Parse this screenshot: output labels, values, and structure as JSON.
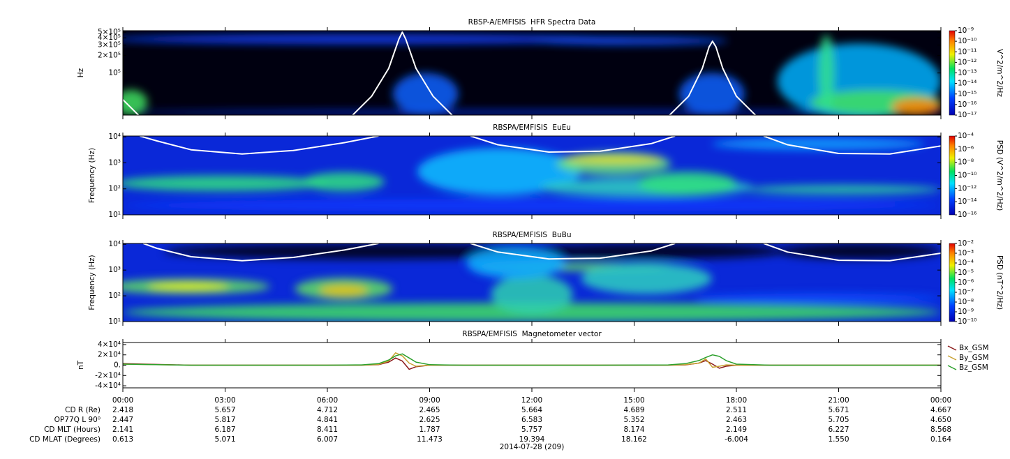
{
  "chart_data": [
    {
      "type": "spectrogram",
      "title": "RBSP-A/EMFISIS  HFR Spectra Data",
      "ylabel": "Hz",
      "ylog": true,
      "ylim": [
        19000,
        530000
      ],
      "yticks": [
        {
          "value": 100000,
          "label": "10⁵"
        },
        {
          "value": 200000,
          "label": "2×10⁵"
        },
        {
          "value": 300000,
          "label": "3×10⁵"
        },
        {
          "value": 400000,
          "label": "4×10⁵"
        },
        {
          "value": 500000,
          "label": "5×10⁵"
        }
      ],
      "xlim": [
        0,
        24
      ],
      "xticks": [
        0,
        3,
        6,
        9,
        12,
        15,
        18,
        21,
        24
      ],
      "colorbar": {
        "label": "V^2/m^2/Hz",
        "log": true,
        "lim": [
          1e-17,
          1e-09
        ],
        "ticks": [
          {
            "value": 1e-09,
            "label": "10⁻⁹"
          },
          {
            "value": 1e-10,
            "label": "10⁻¹⁰"
          },
          {
            "value": 1e-11,
            "label": "10⁻¹¹"
          },
          {
            "value": 1e-12,
            "label": "10⁻¹²"
          },
          {
            "value": 1e-13,
            "label": "10⁻¹³"
          },
          {
            "value": 1e-14,
            "label": "10⁻¹⁴"
          },
          {
            "value": 1e-15,
            "label": "10⁻¹⁵"
          },
          {
            "value": 1e-16,
            "label": "10⁻¹⁶"
          },
          {
            "value": 1e-17,
            "label": "10⁻¹⁷"
          }
        ]
      },
      "lines": [
        {
          "color": "#ffffff",
          "x": [
            0,
            0.5,
            6.7,
            7.3,
            7.8,
            8.1,
            8.2,
            8.3,
            8.6,
            9.1,
            9.7,
            16.0,
            16.6,
            17.0,
            17.2,
            17.3,
            17.4,
            17.6,
            18.0,
            18.6
          ],
          "values": [
            35000,
            18000,
            18000,
            40000,
            120000,
            380000,
            500000,
            380000,
            120000,
            40000,
            18000,
            18000,
            40000,
            120000,
            280000,
            350000,
            280000,
            120000,
            40000,
            18000
          ]
        }
      ]
    },
    {
      "type": "spectrogram",
      "title": "RBSPA/EMFISIS  EuEu",
      "ylabel": "Frequency (Hz)",
      "ylog": true,
      "ylim": [
        10,
        10800
      ],
      "yticks": [
        {
          "value": 10,
          "label": "10¹"
        },
        {
          "value": 100,
          "label": "10²"
        },
        {
          "value": 1000,
          "label": "10³"
        },
        {
          "value": 10000,
          "label": "10⁴"
        }
      ],
      "xlim": [
        0,
        24
      ],
      "xticks": [
        0,
        3,
        6,
        9,
        12,
        15,
        18,
        21,
        24
      ],
      "colorbar": {
        "label": "PSD (V^2/m^2/Hz)",
        "log": true,
        "lim": [
          1e-16,
          0.0001
        ],
        "ticks": [
          {
            "value": 0.0001,
            "label": "10⁻⁴"
          },
          {
            "value": 1e-06,
            "label": "10⁻⁶"
          },
          {
            "value": 1e-08,
            "label": "10⁻⁸"
          },
          {
            "value": 1e-10,
            "label": "10⁻¹⁰"
          },
          {
            "value": 1e-12,
            "label": "10⁻¹²"
          },
          {
            "value": 1e-14,
            "label": "10⁻¹⁴"
          },
          {
            "value": 1e-16,
            "label": "10⁻¹⁶"
          }
        ]
      },
      "lines": [
        {
          "color": "#ffffff",
          "x": [
            0.5,
            1,
            2,
            3.5,
            5,
            6.5,
            7.5,
            8.5,
            10.2,
            11,
            12.5,
            14,
            15.5,
            16.2,
            17.5,
            18.8,
            19.5,
            21,
            22.5,
            24
          ],
          "values": [
            10800,
            7000,
            3200,
            2200,
            3000,
            6000,
            10800,
            null,
            10800,
            5000,
            2600,
            2800,
            5500,
            10800,
            null,
            10800,
            5000,
            2300,
            2200,
            4500
          ]
        }
      ]
    },
    {
      "type": "spectrogram",
      "title": "RBSPA/EMFISIS  BuBu",
      "ylabel": "Frequency (Hz)",
      "ylog": true,
      "ylim": [
        10,
        10800
      ],
      "yticks": [
        {
          "value": 10,
          "label": "10¹"
        },
        {
          "value": 100,
          "label": "10²"
        },
        {
          "value": 1000,
          "label": "10³"
        },
        {
          "value": 10000,
          "label": "10⁴"
        }
      ],
      "xlim": [
        0,
        24
      ],
      "xticks": [
        0,
        3,
        6,
        9,
        12,
        15,
        18,
        21,
        24
      ],
      "colorbar": {
        "label": "PSD (nT^2/Hz)",
        "log": true,
        "lim": [
          1e-10,
          0.01
        ],
        "ticks": [
          {
            "value": 0.01,
            "label": "10⁻²"
          },
          {
            "value": 0.001,
            "label": "10⁻³"
          },
          {
            "value": 0.0001,
            "label": "10⁻⁴"
          },
          {
            "value": 1e-05,
            "label": "10⁻⁵"
          },
          {
            "value": 1e-06,
            "label": "10⁻⁶"
          },
          {
            "value": 1e-07,
            "label": "10⁻⁷"
          },
          {
            "value": 1e-08,
            "label": "10⁻⁸"
          },
          {
            "value": 1e-09,
            "label": "10⁻⁹"
          },
          {
            "value": 1e-10,
            "label": "10⁻¹⁰"
          }
        ]
      },
      "lines": [
        {
          "color": "#ffffff",
          "x": [
            0.6,
            1,
            2,
            3.5,
            5,
            6.5,
            7.5,
            8.5,
            10.2,
            11,
            12.5,
            14,
            15.5,
            16.2,
            17.5,
            18.8,
            19.5,
            21,
            22.5,
            24
          ],
          "values": [
            10800,
            7000,
            3300,
            2300,
            3100,
            6000,
            10800,
            null,
            10800,
            5000,
            2700,
            2900,
            5500,
            10800,
            null,
            10800,
            5000,
            2400,
            2300,
            4500
          ]
        }
      ]
    },
    {
      "type": "line",
      "title": "RBSPA/EMFISIS  Magnetometer vector",
      "ylabel": "nT",
      "ylim": [
        -44000,
        44000
      ],
      "yticks": [
        {
          "value": -40000,
          "label": "-4×10⁴"
        },
        {
          "value": -20000,
          "label": "-2×10⁴"
        },
        {
          "value": 0,
          "label": "0."
        },
        {
          "value": 20000,
          "label": "2×10⁴"
        },
        {
          "value": 40000,
          "label": "4×10⁴"
        }
      ],
      "xlim": [
        0,
        24
      ],
      "xticks": [
        {
          "value": 0,
          "label": "00:00"
        },
        {
          "value": 3,
          "label": "03:00"
        },
        {
          "value": 6,
          "label": "06:00"
        },
        {
          "value": 9,
          "label": "09:00"
        },
        {
          "value": 12,
          "label": "12:00"
        },
        {
          "value": 15,
          "label": "15:00"
        },
        {
          "value": 18,
          "label": "18:00"
        },
        {
          "value": 21,
          "label": "21:00"
        },
        {
          "value": 24,
          "label": "00:00"
        }
      ],
      "xlabel": "2014-07-28 (209)",
      "x": [
        0,
        2,
        4,
        6,
        7,
        7.5,
        7.8,
        8.0,
        8.2,
        8.4,
        8.6,
        9,
        10,
        12,
        14,
        16,
        16.5,
        16.9,
        17.1,
        17.3,
        17.5,
        17.7,
        18,
        19,
        21,
        24
      ],
      "series": [
        {
          "name": "Bx_GSM",
          "color": "#8b1a1a",
          "values": [
            3000,
            0,
            0,
            0,
            0,
            1000,
            6000,
            14000,
            8000,
            -8000,
            -3000,
            0,
            0,
            0,
            0,
            0,
            500,
            4000,
            9000,
            2000,
            -6000,
            -2000,
            0,
            0,
            0,
            0
          ]
        },
        {
          "name": "By_GSM",
          "color": "#c8a030",
          "values": [
            2000,
            0,
            0,
            0,
            0,
            1500,
            8000,
            24000,
            18000,
            4000,
            -2000,
            0,
            0,
            0,
            0,
            0,
            1000,
            4000,
            12000,
            -4000,
            -2000,
            500,
            0,
            0,
            0,
            0
          ]
        },
        {
          "name": "Bz_GSM",
          "color": "#2ca02c",
          "values": [
            2000,
            0,
            0,
            0,
            500,
            3000,
            10000,
            18000,
            22000,
            14000,
            6000,
            1000,
            0,
            0,
            0,
            500,
            3000,
            9000,
            15000,
            20000,
            17000,
            9000,
            2000,
            0,
            0,
            0
          ]
        }
      ],
      "ephemeris": [
        {
          "label": "CD R (Re)",
          "values": [
            "2.418",
            "5.657",
            "4.712",
            "2.465",
            "5.664",
            "4.689",
            "2.511",
            "5.671",
            "4.667"
          ]
        },
        {
          "label": "OP77Q L 90⁰",
          "values": [
            "2.447",
            "5.817",
            "4.841",
            "2.625",
            "6.583",
            "5.352",
            "2.463",
            "5.705",
            "4.650"
          ]
        },
        {
          "label": "CD MLT (Hours)",
          "values": [
            "2.141",
            "6.187",
            "8.411",
            "1.787",
            "5.757",
            "8.174",
            "2.149",
            "6.227",
            "8.568"
          ]
        },
        {
          "label": "CD MLAT (Degrees)",
          "values": [
            "0.613",
            "5.071",
            "6.007",
            "11.473",
            "19.394",
            "18.162",
            "-6.004",
            "1.550",
            "0.164"
          ]
        }
      ]
    }
  ]
}
